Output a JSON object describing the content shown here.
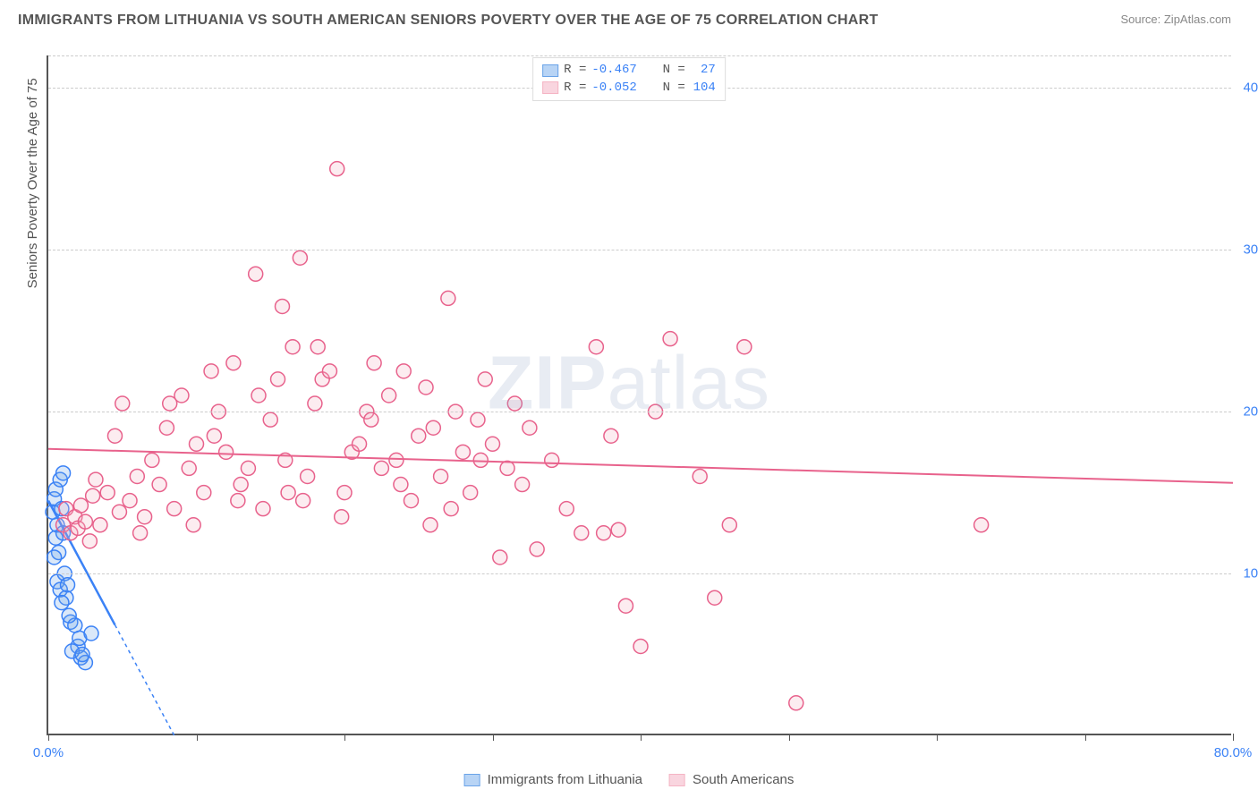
{
  "title": "IMMIGRANTS FROM LITHUANIA VS SOUTH AMERICAN SENIORS POVERTY OVER THE AGE OF 75 CORRELATION CHART",
  "source": "Source: ZipAtlas.com",
  "watermark": {
    "bold": "ZIP",
    "rest": "atlas"
  },
  "y_axis_title": "Seniors Poverty Over the Age of 75",
  "chart": {
    "type": "scatter",
    "xlim": [
      0,
      80
    ],
    "ylim": [
      0,
      42
    ],
    "x_ticks": [
      0,
      10,
      20,
      30,
      40,
      50,
      60,
      70,
      80
    ],
    "x_tick_labels": {
      "0": "0.0%",
      "80": "80.0%"
    },
    "y_gridlines": [
      10,
      20,
      30,
      40,
      42
    ],
    "y_tick_labels": {
      "10": "10.0%",
      "20": "20.0%",
      "30": "30.0%",
      "40": "40.0%"
    },
    "background_color": "#ffffff",
    "grid_color": "#cccccc",
    "axis_color": "#555555",
    "tick_label_color": "#3b82f6",
    "marker_radius": 8,
    "marker_stroke_width": 1.5,
    "fill_opacity": 0.25,
    "series": [
      {
        "id": "lithuania",
        "label": "Immigrants from Lithuania",
        "color": "#6aa3e8",
        "stroke": "#3b82f6",
        "r": -0.467,
        "n": 27,
        "trend": {
          "x1": 0,
          "y1": 14.5,
          "x2": 8.5,
          "y2": 0,
          "dash_after_x": 4.5
        },
        "points": [
          [
            0.3,
            13.8
          ],
          [
            0.4,
            14.6
          ],
          [
            0.5,
            15.2
          ],
          [
            0.6,
            13.0
          ],
          [
            0.5,
            12.2
          ],
          [
            0.7,
            11.3
          ],
          [
            0.4,
            11.0
          ],
          [
            0.8,
            15.8
          ],
          [
            0.9,
            14.0
          ],
          [
            1.0,
            16.2
          ],
          [
            0.6,
            9.5
          ],
          [
            0.8,
            9.0
          ],
          [
            1.1,
            10.0
          ],
          [
            1.2,
            8.5
          ],
          [
            1.5,
            7.0
          ],
          [
            1.8,
            6.8
          ],
          [
            2.0,
            5.5
          ],
          [
            2.2,
            4.8
          ],
          [
            1.6,
            5.2
          ],
          [
            2.5,
            4.5
          ],
          [
            1.3,
            9.3
          ],
          [
            1.0,
            12.5
          ],
          [
            0.9,
            8.2
          ],
          [
            1.4,
            7.4
          ],
          [
            2.1,
            6.0
          ],
          [
            2.3,
            5.0
          ],
          [
            2.9,
            6.3
          ]
        ]
      },
      {
        "id": "south_american",
        "label": "South Americans",
        "color": "#f5b4c4",
        "stroke": "#e8628c",
        "r": -0.052,
        "n": 104,
        "trend": {
          "x1": 0,
          "y1": 17.7,
          "x2": 80,
          "y2": 15.6
        },
        "points": [
          [
            1.0,
            13.0
          ],
          [
            1.2,
            14.0
          ],
          [
            1.5,
            12.5
          ],
          [
            1.8,
            13.5
          ],
          [
            2.0,
            12.8
          ],
          [
            2.2,
            14.2
          ],
          [
            2.5,
            13.2
          ],
          [
            2.8,
            12.0
          ],
          [
            3.0,
            14.8
          ],
          [
            3.5,
            13.0
          ],
          [
            4.0,
            15.0
          ],
          [
            4.5,
            18.5
          ],
          [
            5.0,
            20.5
          ],
          [
            5.5,
            14.5
          ],
          [
            6.0,
            16.0
          ],
          [
            6.5,
            13.5
          ],
          [
            7.0,
            17.0
          ],
          [
            7.5,
            15.5
          ],
          [
            8.0,
            19.0
          ],
          [
            8.5,
            14.0
          ],
          [
            9.0,
            21.0
          ],
          [
            9.5,
            16.5
          ],
          [
            10.0,
            18.0
          ],
          [
            10.5,
            15.0
          ],
          [
            11.0,
            22.5
          ],
          [
            11.5,
            20.0
          ],
          [
            12.0,
            17.5
          ],
          [
            12.5,
            23.0
          ],
          [
            13.0,
            15.5
          ],
          [
            13.5,
            16.5
          ],
          [
            14.0,
            28.5
          ],
          [
            14.5,
            14.0
          ],
          [
            15.0,
            19.5
          ],
          [
            15.5,
            22.0
          ],
          [
            16.0,
            17.0
          ],
          [
            16.5,
            24.0
          ],
          [
            17.0,
            29.5
          ],
          [
            17.5,
            16.0
          ],
          [
            18.0,
            20.5
          ],
          [
            18.5,
            22.0
          ],
          [
            19.0,
            22.5
          ],
          [
            19.5,
            35.0
          ],
          [
            20.0,
            15.0
          ],
          [
            20.5,
            17.5
          ],
          [
            21.0,
            18.0
          ],
          [
            21.5,
            20.0
          ],
          [
            22.0,
            23.0
          ],
          [
            22.5,
            16.5
          ],
          [
            23.0,
            21.0
          ],
          [
            23.5,
            17.0
          ],
          [
            24.0,
            22.5
          ],
          [
            24.5,
            14.5
          ],
          [
            25.0,
            18.5
          ],
          [
            25.5,
            21.5
          ],
          [
            26.0,
            19.0
          ],
          [
            26.5,
            16.0
          ],
          [
            27.0,
            27.0
          ],
          [
            27.5,
            20.0
          ],
          [
            28.0,
            17.5
          ],
          [
            28.5,
            15.0
          ],
          [
            29.0,
            19.5
          ],
          [
            29.5,
            22.0
          ],
          [
            30.0,
            18.0
          ],
          [
            30.5,
            11.0
          ],
          [
            31.0,
            16.5
          ],
          [
            31.5,
            20.5
          ],
          [
            32.0,
            15.5
          ],
          [
            32.5,
            19.0
          ],
          [
            33.0,
            11.5
          ],
          [
            34.0,
            17.0
          ],
          [
            35.0,
            14.0
          ],
          [
            36.0,
            12.5
          ],
          [
            37.0,
            24.0
          ],
          [
            37.5,
            12.5
          ],
          [
            38.0,
            18.5
          ],
          [
            38.5,
            12.7
          ],
          [
            39.0,
            8.0
          ],
          [
            40.0,
            5.5
          ],
          [
            41.0,
            20.0
          ],
          [
            42.0,
            24.5
          ],
          [
            44.0,
            16.0
          ],
          [
            45.0,
            8.5
          ],
          [
            46.0,
            13.0
          ],
          [
            47.0,
            24.0
          ],
          [
            50.5,
            2.0
          ],
          [
            63.0,
            13.0
          ],
          [
            3.2,
            15.8
          ],
          [
            4.8,
            13.8
          ],
          [
            6.2,
            12.5
          ],
          [
            8.2,
            20.5
          ],
          [
            9.8,
            13.0
          ],
          [
            11.2,
            18.5
          ],
          [
            12.8,
            14.5
          ],
          [
            14.2,
            21.0
          ],
          [
            16.2,
            15.0
          ],
          [
            18.2,
            24.0
          ],
          [
            19.8,
            13.5
          ],
          [
            21.8,
            19.5
          ],
          [
            23.8,
            15.5
          ],
          [
            25.8,
            13.0
          ],
          [
            27.2,
            14.0
          ],
          [
            29.2,
            17.0
          ],
          [
            15.8,
            26.5
          ],
          [
            17.2,
            14.5
          ]
        ]
      }
    ]
  },
  "legend_top": [
    {
      "swatch_fill": "#b8d4f5",
      "swatch_stroke": "#6aa3e8",
      "r": "-0.467",
      "n": "27"
    },
    {
      "swatch_fill": "#f9d5df",
      "swatch_stroke": "#f5b4c4",
      "r": "-0.052",
      "n": "104"
    }
  ],
  "legend_bottom": [
    {
      "label": "Immigrants from Lithuania",
      "fill": "#b8d4f5",
      "stroke": "#6aa3e8"
    },
    {
      "label": "South Americans",
      "fill": "#f9d5df",
      "stroke": "#f5b4c4"
    }
  ]
}
